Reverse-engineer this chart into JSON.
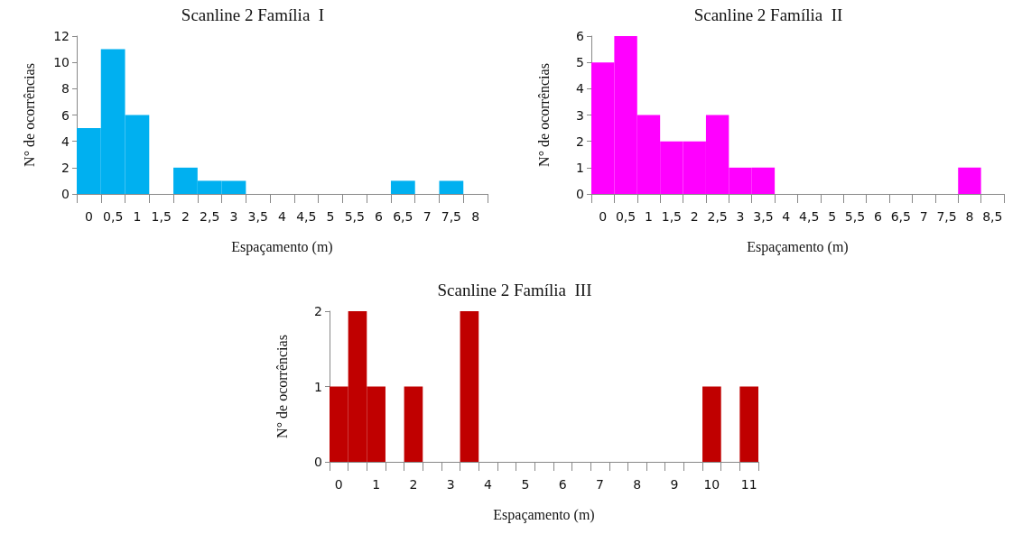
{
  "chart_data": [
    {
      "type": "bar",
      "title": "Scanline 2 Família  I",
      "xlabel": "Espaçamento (m)",
      "ylabel": "N° de ocorrências",
      "categories": [
        "0",
        "0,5",
        "1",
        "1,5",
        "2",
        "2,5",
        "3",
        "3,5",
        "4",
        "4,5",
        "5",
        "5,5",
        "6",
        "6,5",
        "7",
        "7,5",
        "8"
      ],
      "values": [
        5,
        11,
        6,
        0,
        2,
        1,
        1,
        0,
        0,
        0,
        0,
        0,
        0,
        1,
        0,
        1,
        0
      ],
      "color": "#00b0f0",
      "ylim": [
        0,
        12
      ],
      "yticks": [
        0,
        2,
        4,
        6,
        8,
        10,
        12
      ],
      "grid": false
    },
    {
      "type": "bar",
      "title": "Scanline 2 Família  II",
      "xlabel": "Espaçamento (m)",
      "ylabel": "N° de ocorrências",
      "categories": [
        "0",
        "0,5",
        "1",
        "1,5",
        "2",
        "2,5",
        "3",
        "3,5",
        "4",
        "4,5",
        "5",
        "5,5",
        "6",
        "6,5",
        "7",
        "7,5",
        "8",
        "8,5"
      ],
      "values": [
        5,
        6,
        3,
        2,
        2,
        3,
        1,
        1,
        0,
        0,
        0,
        0,
        0,
        0,
        0,
        0,
        1,
        0
      ],
      "color": "#ff00ff",
      "ylim": [
        0,
        6
      ],
      "yticks": [
        0,
        1,
        2,
        3,
        4,
        5,
        6
      ],
      "grid": false
    },
    {
      "type": "bar",
      "title": "Scanline 2 Família  III",
      "xlabel": "Espaçamento (m)",
      "ylabel": "N° de ocorrências",
      "categories": [
        "0",
        null,
        "1",
        null,
        "2",
        null,
        "3",
        null,
        "4",
        null,
        "5",
        null,
        "6",
        null,
        "7",
        null,
        "8",
        null,
        "9",
        null,
        "10",
        null,
        "11"
      ],
      "values": [
        1,
        2,
        1,
        0,
        1,
        0,
        0,
        2,
        0,
        0,
        0,
        0,
        0,
        0,
        0,
        0,
        0,
        0,
        0,
        0,
        1,
        0,
        1
      ],
      "color": "#c00000",
      "ylim": [
        0,
        2
      ],
      "yticks": [
        0,
        1,
        2
      ],
      "grid": false
    }
  ]
}
